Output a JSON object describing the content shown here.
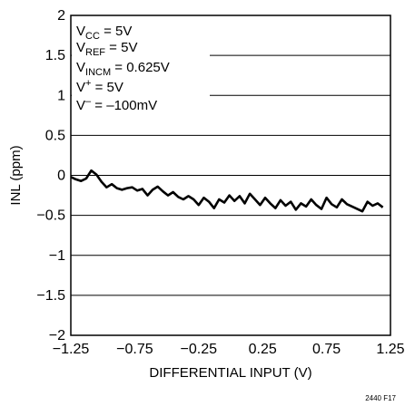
{
  "chart_data": {
    "type": "line",
    "xlabel": "DIFFERENTIAL INPUT (V)",
    "ylabel": "INL (ppm)",
    "xlim": [
      -1.25,
      1.25
    ],
    "ylim": [
      -2,
      2
    ],
    "x_ticks": [
      -1.25,
      -0.75,
      -0.25,
      0.25,
      0.75,
      1.25
    ],
    "x_tick_labels": [
      "−1.25",
      "−0.75",
      "−0.25",
      "0.25",
      "0.75",
      "1.25"
    ],
    "y_ticks": [
      -2,
      -1.5,
      -1,
      -0.5,
      0,
      0.5,
      1,
      1.5,
      2
    ],
    "y_tick_labels": [
      "−2",
      "−1.5",
      "−1",
      "−0.5",
      "0",
      "0.5",
      "1",
      "1.5",
      "2"
    ],
    "grid": true,
    "annotations": [
      {
        "main": "V",
        "sub": "CC",
        "rest": " = 5V"
      },
      {
        "main": "V",
        "sub": "REF",
        "rest": " = 5V"
      },
      {
        "main": "V",
        "sub": "INCM",
        "rest": " = 0.625V"
      },
      {
        "main": "V",
        "sup": "+",
        "rest": " = 5V"
      },
      {
        "main": "V",
        "sup": "–",
        "rest": " = –100mV"
      }
    ],
    "figure_id": "2440 F17",
    "series": [
      {
        "color": "#000000",
        "x": [
          -1.25,
          -1.21,
          -1.17,
          -1.13,
          -1.09,
          -1.05,
          -1.01,
          -0.97,
          -0.93,
          -0.89,
          -0.85,
          -0.81,
          -0.77,
          -0.73,
          -0.69,
          -0.65,
          -0.61,
          -0.57,
          -0.53,
          -0.49,
          -0.45,
          -0.41,
          -0.37,
          -0.33,
          -0.29,
          -0.25,
          -0.21,
          -0.17,
          -0.13,
          -0.09,
          -0.05,
          -0.01,
          0.03,
          0.07,
          0.11,
          0.15,
          0.19,
          0.23,
          0.27,
          0.31,
          0.35,
          0.39,
          0.43,
          0.47,
          0.51,
          0.55,
          0.59,
          0.63,
          0.67,
          0.71,
          0.75,
          0.79,
          0.83,
          0.87,
          0.91,
          0.95,
          0.99,
          1.03,
          1.07,
          1.11,
          1.15,
          1.19
        ],
        "y": [
          -0.02,
          -0.05,
          -0.07,
          -0.04,
          0.06,
          0.01,
          -0.08,
          -0.15,
          -0.11,
          -0.16,
          -0.18,
          -0.16,
          -0.15,
          -0.19,
          -0.17,
          -0.25,
          -0.18,
          -0.14,
          -0.2,
          -0.25,
          -0.21,
          -0.27,
          -0.3,
          -0.26,
          -0.3,
          -0.37,
          -0.28,
          -0.33,
          -0.41,
          -0.3,
          -0.34,
          -0.25,
          -0.32,
          -0.26,
          -0.35,
          -0.23,
          -0.3,
          -0.37,
          -0.28,
          -0.35,
          -0.41,
          -0.31,
          -0.38,
          -0.33,
          -0.43,
          -0.35,
          -0.39,
          -0.3,
          -0.37,
          -0.42,
          -0.28,
          -0.36,
          -0.4,
          -0.3,
          -0.36,
          -0.39,
          -0.42,
          -0.45,
          -0.33,
          -0.38,
          -0.35,
          -0.4
        ]
      }
    ]
  }
}
